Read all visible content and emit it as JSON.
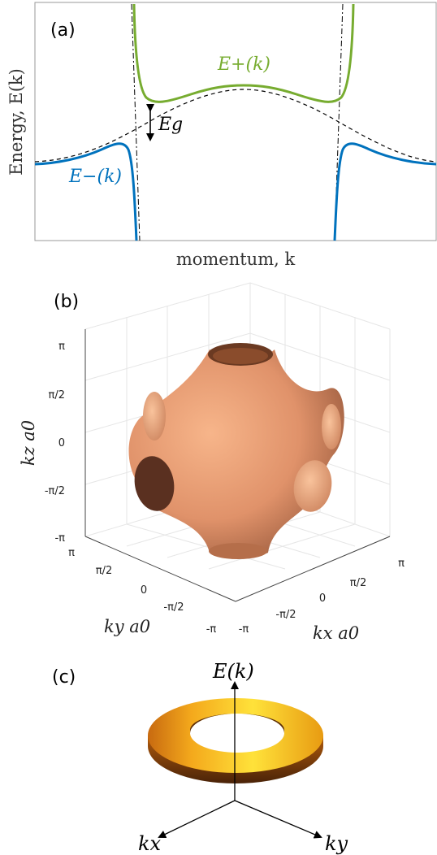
{
  "panels": {
    "a": {
      "label": "(a)",
      "ylabel": "Energy, E(k)",
      "xlabel": "momentum, k",
      "upper_band_label": "E+(k)",
      "lower_band_label": "E−(k)",
      "gap_label": "Eg",
      "colors": {
        "upper": "#77ac30",
        "lower": "#0072bd",
        "dashed": "#000000"
      }
    },
    "b": {
      "label": "(b)",
      "zlabel": "kz a0",
      "ylabel": "ky a0",
      "xlabel": "kx a0",
      "z_ticks": [
        "π",
        "π/2",
        "0",
        "-π/2",
        "-π"
      ],
      "y_ticks": [
        "π",
        "π/2",
        "0",
        "-π/2",
        "-π"
      ],
      "x_ticks": [
        "-π",
        "-π/2",
        "0",
        "π/2",
        "π"
      ],
      "surface_color": "#e8a27a"
    },
    "c": {
      "label": "(c)",
      "e_axis_label": "E(k)",
      "kx_label": "kx",
      "ky_label": "ky"
    }
  }
}
